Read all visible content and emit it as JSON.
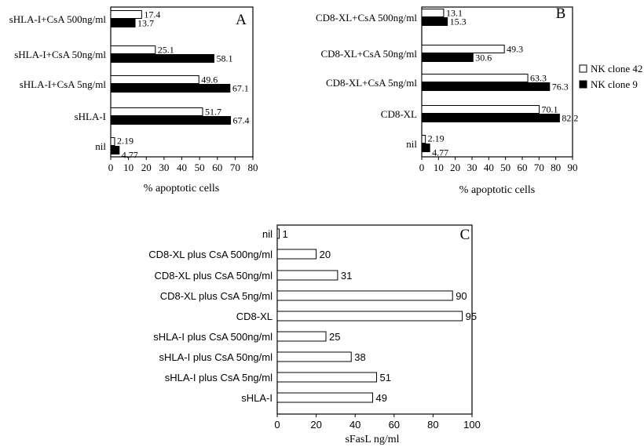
{
  "chart_data": [
    {
      "type": "bar",
      "orientation": "horizontal",
      "panel_label": "A",
      "categories": [
        "sHLA-I+CsA 500ng/ml",
        "sHLA-I+CsA 50ng/ml",
        "sHLA-I+CsA 5ng/ml",
        "sHLA-I",
        "nil"
      ],
      "series": [
        {
          "values": [
            17.4,
            25.1,
            49.6,
            51.7,
            2.19
          ],
          "labels": [
            "17.4",
            "25.1",
            "49.6",
            "51.7",
            "2.19"
          ],
          "fill": "#ffffff"
        },
        {
          "values": [
            13.7,
            58.1,
            67.1,
            67.4,
            4.77
          ],
          "labels": [
            "13.7",
            "58.1",
            "67.1",
            "67.4",
            "4.77"
          ],
          "fill": "#000000"
        }
      ],
      "xlabel": "% apoptotic cells",
      "xlim": [
        0,
        80
      ],
      "xticks": [
        0,
        10,
        20,
        30,
        40,
        50,
        60,
        70,
        80
      ],
      "grid": false
    },
    {
      "type": "bar",
      "orientation": "horizontal",
      "panel_label": "B",
      "categories": [
        "CD8-XL+CsA 500ng/ml",
        "CD8-XL+CsA 50ng/ml",
        "CD8-XL+CsA 5ng/ml",
        "CD8-XL",
        "nil"
      ],
      "series": [
        {
          "name": "NK clone 42",
          "values": [
            13.1,
            49.3,
            63.3,
            70.1,
            2.19
          ],
          "labels": [
            "13.1",
            "49.3",
            "63.3",
            "70.1",
            "2.19"
          ],
          "fill": "#ffffff"
        },
        {
          "name": "NK clone 9",
          "values": [
            15.3,
            30.6,
            76.3,
            82.2,
            4.77
          ],
          "labels": [
            "15.3",
            "30.6",
            "76.3",
            "82.2",
            "4.77"
          ],
          "fill": "#000000"
        }
      ],
      "xlabel": "% apoptotic cells",
      "xlim": [
        0,
        90
      ],
      "xticks": [
        0,
        10,
        20,
        30,
        40,
        50,
        60,
        70,
        80,
        90
      ],
      "legend_position": "right",
      "grid": false
    },
    {
      "type": "bar",
      "orientation": "horizontal",
      "panel_label": "C",
      "categories": [
        "nil",
        "CD8-XL plus CsA 500ng/ml",
        "CD8-XL plus CsA 50ng/ml",
        "CD8-XL plus CsA 5ng/ml",
        "CD8-XL",
        "sHLA-I plus CsA 500ng/ml",
        "sHLA-I plus CsA 50ng/ml",
        "sHLA-I plus CsA 5ng/ml",
        "sHLA-I"
      ],
      "values": [
        1,
        20,
        31,
        90,
        95,
        25,
        38,
        51,
        49
      ],
      "labels": [
        "1",
        "20",
        "31",
        "90",
        "95",
        "25",
        "38",
        "51",
        "49"
      ],
      "xlabel": "sFasL ng/ml",
      "xlim": [
        0,
        100
      ],
      "xticks": [
        0,
        20,
        40,
        60,
        80,
        100
      ],
      "grid": false
    }
  ]
}
